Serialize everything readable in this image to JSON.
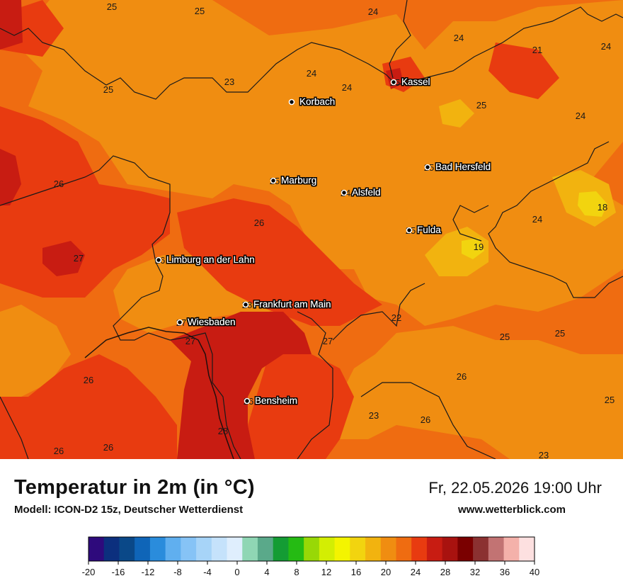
{
  "header": {
    "title": "Temperatur in 2m (in °C)",
    "model": "Modell: ICON-D2 15z, Deutscher Wetterdienst",
    "datetime": "Fr, 22.05.2026 19:00 Uhr",
    "website": "www.wetterblick.com"
  },
  "cities": [
    {
      "name": "Kassel",
      "value": "25"
    },
    {
      "name": "Korbach",
      "value": ""
    },
    {
      "name": "Bad Hersfeld",
      "value": "25"
    },
    {
      "name": "Marburg",
      "value": "25"
    },
    {
      "name": "Alsfeld",
      "value": "24"
    },
    {
      "name": "Fulda",
      "value": "25"
    },
    {
      "name": "Limburg an der Lahn",
      "value": "26"
    },
    {
      "name": "Frankfurt am Main",
      "value": "28"
    },
    {
      "name": "Wiesbaden",
      "value": "27"
    },
    {
      "name": "Bensheim",
      "value": "26"
    }
  ],
  "temperature_labels": [
    "25",
    "25",
    "24",
    "24",
    "24",
    "21",
    "24",
    "25",
    "23",
    "24",
    "25",
    "24",
    "26",
    "26",
    "18",
    "24",
    "19",
    "27",
    "22",
    "27",
    "25",
    "25",
    "27",
    "26",
    "26",
    "25",
    "23",
    "26",
    "28",
    "26",
    "26",
    "23"
  ],
  "legend": {
    "ticks": [
      "-20",
      "-16",
      "-12",
      "-8",
      "-4",
      "0",
      "4",
      "8",
      "12",
      "16",
      "20",
      "24",
      "28",
      "32",
      "36",
      "40"
    ],
    "colors": [
      "#2e0a7c",
      "#0c2f7e",
      "#0a4888",
      "#0f65b8",
      "#2a8cdc",
      "#60afef",
      "#86c3f6",
      "#a7d4f8",
      "#c5e2fb",
      "#dfeefd",
      "#8fd6b4",
      "#5aa98a",
      "#149c34",
      "#25bb13",
      "#98d806",
      "#d3ee03",
      "#f4f400",
      "#f2d40f",
      "#f2b30f",
      "#f08d11",
      "#ef6c11",
      "#e83b10",
      "#c81c12",
      "#a8120f",
      "#7a0000",
      "#8b3131",
      "#c27373",
      "#f4b1aa",
      "#fde0e0"
    ]
  }
}
